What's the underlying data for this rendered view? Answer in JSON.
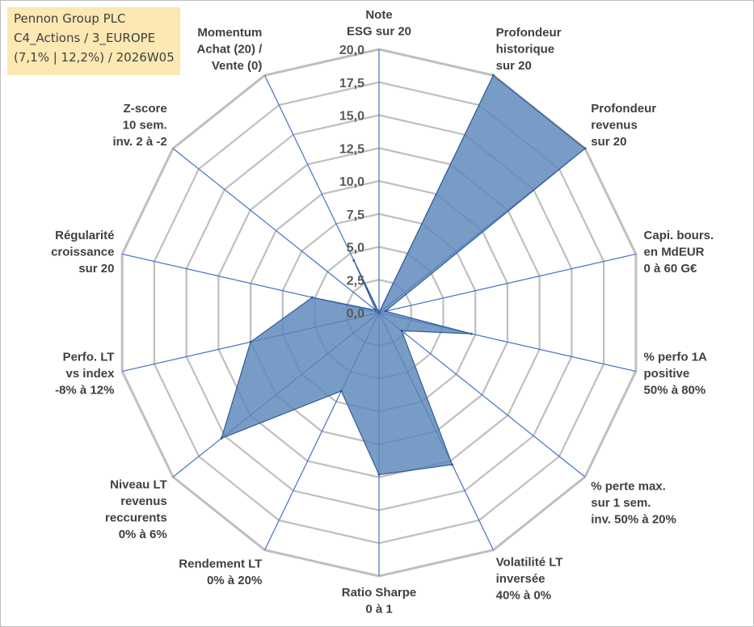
{
  "info_box": {
    "line1": "Pennon Group PLC",
    "line2": "C4_Actions / 3_EUROPE",
    "line3": "(7,1% | 12,2%) / 2026W05"
  },
  "colors": {
    "fill": "#5b86b9",
    "stroke": "#2f5c99",
    "spoke": "#4472c4",
    "grid": "#bfbfbf",
    "info_bg": "#fce8b2"
  },
  "chart_data": {
    "type": "radar",
    "title": "",
    "rmin": 0,
    "rmax": 20,
    "tick_step": 2.5,
    "ticks": [
      "0,0",
      "2,5",
      "5,0",
      "7,5",
      "10,0",
      "12,5",
      "15,0",
      "17,5",
      "20,0"
    ],
    "axes": [
      {
        "lines": [
          "Note",
          "ESG sur 20"
        ]
      },
      {
        "lines": [
          "Profondeur",
          "historique",
          "sur 20"
        ]
      },
      {
        "lines": [
          "Profondeur",
          "revenus",
          "sur 20"
        ]
      },
      {
        "lines": [
          "Capi. bours.",
          "en MdEUR",
          "0 à 60 G€"
        ]
      },
      {
        "lines": [
          "% perfo 1A",
          "positive",
          "50% à 80%"
        ]
      },
      {
        "lines": [
          "% perte max.",
          "sur 1 sem.",
          "inv. 50% à 20%"
        ]
      },
      {
        "lines": [
          "Volatilité LT",
          "inversée",
          "40% à 0%"
        ]
      },
      {
        "lines": [
          "Ratio Sharpe",
          "0 à 1"
        ]
      },
      {
        "lines": [
          "Rendement LT",
          "0% à 20%"
        ]
      },
      {
        "lines": [
          "Niveau LT",
          "revenus",
          "reccurents",
          "0% à 6%"
        ]
      },
      {
        "lines": [
          "Perfo. LT",
          "vs index",
          "-8% à 12%"
        ]
      },
      {
        "lines": [
          "Régularité",
          "croissance",
          "sur 20"
        ]
      },
      {
        "lines": [
          "Z-score",
          "10 sem.",
          "inv. 2 à -2"
        ]
      },
      {
        "lines": [
          "Momentum",
          "Achat (20) /",
          "Vente (0)"
        ]
      }
    ],
    "series": [
      {
        "name": "Pennon Group PLC",
        "values": [
          0,
          20,
          20,
          0.5,
          7.2,
          2.2,
          12.8,
          12.3,
          6.6,
          15.3,
          10.0,
          5.2,
          0.3,
          4.4
        ]
      }
    ]
  }
}
